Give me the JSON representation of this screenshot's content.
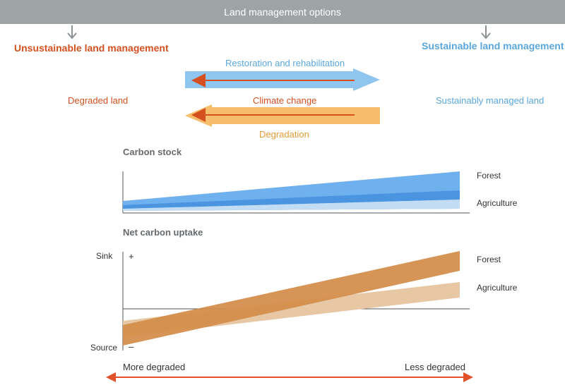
{
  "header": {
    "title": "Land management options"
  },
  "management": {
    "unsustainable": "Unsustainable land management",
    "sustainable": "Sustainable land management"
  },
  "states": {
    "degraded": "Degraded land",
    "managed": "Sustainably managed land"
  },
  "flows": {
    "restoration": "Restoration and rehabilitation",
    "climate_change": "Climate change",
    "degradation": "Degradation"
  },
  "panels": {
    "carbon_stock": {
      "title": "Carbon stock",
      "series": [
        "Forest",
        "Agriculture"
      ]
    },
    "net_uptake": {
      "title": "Net carbon uptake",
      "sink_label": "Sink",
      "source_label": "Source",
      "plus": "+",
      "minus": "–",
      "series": [
        "Forest",
        "Agriculture"
      ]
    }
  },
  "axis": {
    "left": "More degraded",
    "right": "Less degraded"
  },
  "colors": {
    "header": "#9ea3a6",
    "red": "#d4501f",
    "blue": "#5aa7dc",
    "orange": "#f4b860",
    "forest_band_stock": "#5fa8ea",
    "agri_band_stock": "#b8d7f2",
    "forest_band_uptake": "#d38c49",
    "agri_band_uptake": "#e8c4a0"
  }
}
